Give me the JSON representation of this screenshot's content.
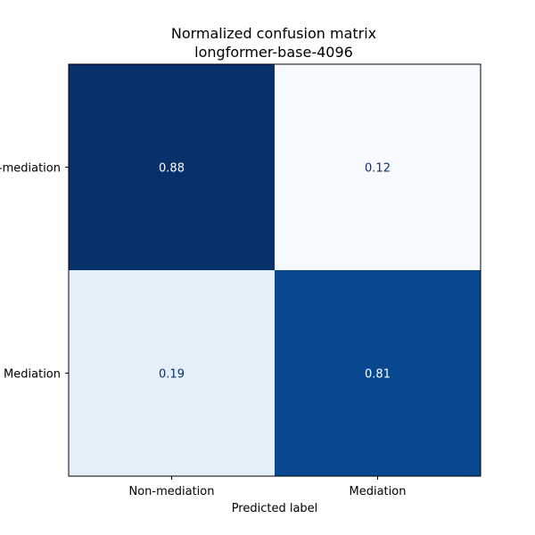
{
  "chart_data": {
    "type": "heatmap",
    "title": "Normalized confusion matrix\nlongformer-base-4096",
    "xlabel": "Predicted label",
    "ylabel": "",
    "x_categories": [
      "Non-mediation",
      "Mediation"
    ],
    "y_categories": [
      "Non-mediation",
      "Mediation"
    ],
    "values": [
      [
        0.88,
        0.12
      ],
      [
        0.19,
        0.81
      ]
    ],
    "value_labels": [
      [
        "0.88",
        "0.12"
      ],
      [
        "0.19",
        "0.81"
      ]
    ],
    "colormap": "Blues",
    "vrange": [
      0.12,
      0.88
    ],
    "colors": {
      "light_text": "#ffffff",
      "dark_text": "#08306b",
      "axis": "#000000"
    }
  }
}
